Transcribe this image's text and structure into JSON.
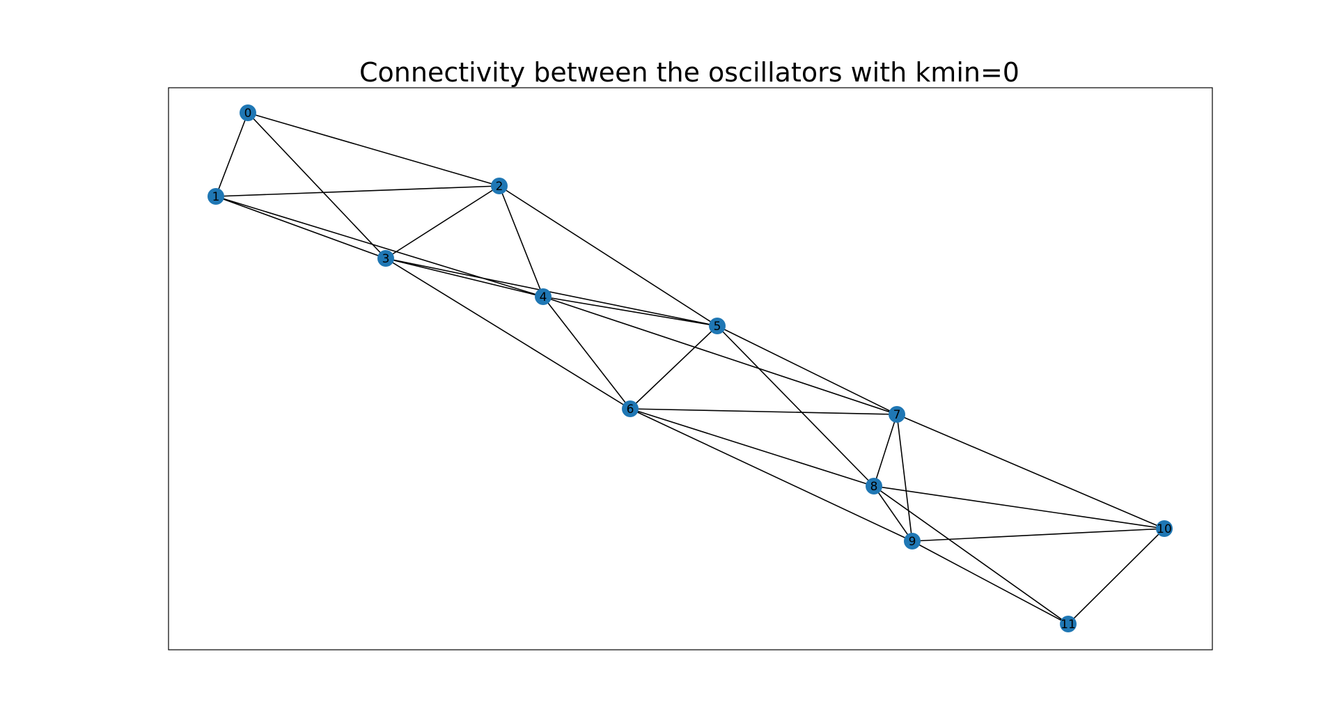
{
  "title": "Connectivity between the oscillators with kmin=0",
  "colors": {
    "node": "#1f77b4",
    "edge": "#000000",
    "background": "#ffffff",
    "frame": "#000000"
  },
  "nodes": [
    {
      "id": "0"
    },
    {
      "id": "1"
    },
    {
      "id": "2"
    },
    {
      "id": "3"
    },
    {
      "id": "4"
    },
    {
      "id": "5"
    },
    {
      "id": "6"
    },
    {
      "id": "7"
    },
    {
      "id": "8"
    },
    {
      "id": "9"
    },
    {
      "id": "10"
    },
    {
      "id": "11"
    }
  ],
  "edges": [
    [
      "0",
      "1"
    ],
    [
      "0",
      "2"
    ],
    [
      "0",
      "3"
    ],
    [
      "1",
      "2"
    ],
    [
      "1",
      "3"
    ],
    [
      "1",
      "4"
    ],
    [
      "2",
      "3"
    ],
    [
      "2",
      "4"
    ],
    [
      "2",
      "5"
    ],
    [
      "3",
      "4"
    ],
    [
      "3",
      "5"
    ],
    [
      "3",
      "6"
    ],
    [
      "4",
      "5"
    ],
    [
      "4",
      "6"
    ],
    [
      "4",
      "7"
    ],
    [
      "5",
      "6"
    ],
    [
      "5",
      "7"
    ],
    [
      "5",
      "8"
    ],
    [
      "6",
      "7"
    ],
    [
      "6",
      "8"
    ],
    [
      "6",
      "9"
    ],
    [
      "7",
      "8"
    ],
    [
      "7",
      "9"
    ],
    [
      "7",
      "10"
    ],
    [
      "8",
      "9"
    ],
    [
      "8",
      "10"
    ],
    [
      "8",
      "11"
    ],
    [
      "9",
      "10"
    ],
    [
      "9",
      "11"
    ],
    [
      "10",
      "11"
    ]
  ]
}
